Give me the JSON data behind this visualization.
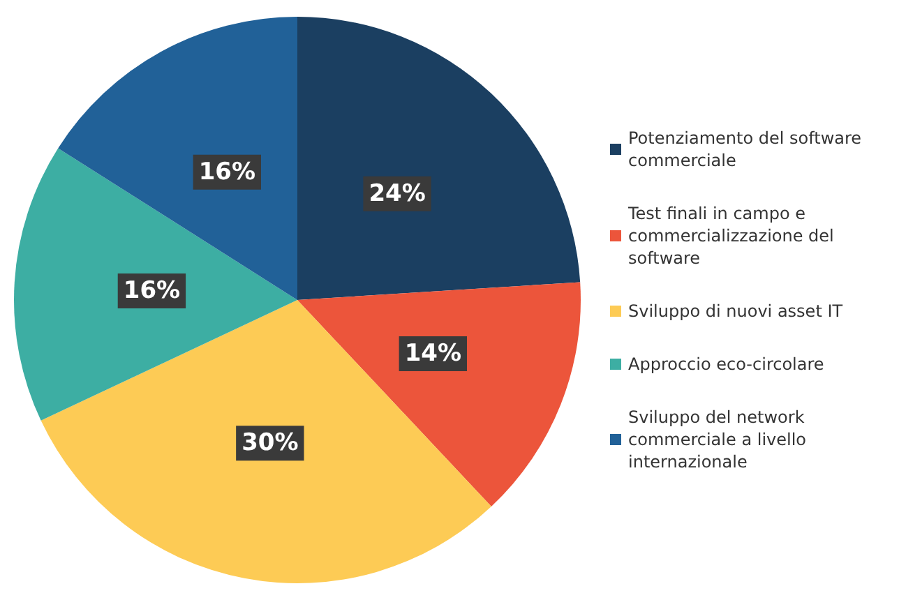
{
  "chart_data": {
    "type": "pie",
    "categories": [
      "Potenziamento del software commerciale",
      "Test finali in campo e commercializzazione del software",
      "Sviluppo di nuovi asset IT",
      "Approccio eco-circolare",
      "Sviluppo del network commerciale a livello internazionale"
    ],
    "values": [
      24,
      14,
      30,
      16,
      16
    ],
    "value_labels": [
      "24%",
      "14%",
      "30%",
      "16%",
      "16%"
    ],
    "colors": [
      "#1b3f61",
      "#ec553b",
      "#fdcb55",
      "#3daea3",
      "#216198"
    ],
    "legend": "right"
  }
}
